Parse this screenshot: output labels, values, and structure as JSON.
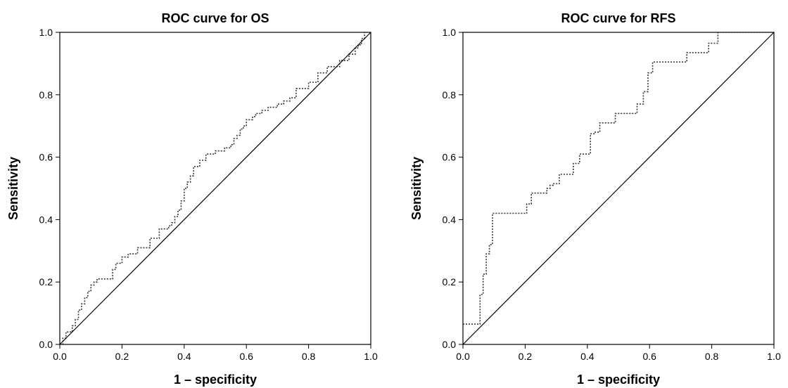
{
  "colors": {
    "curve": "#333333",
    "reference": "#000000",
    "frame": "#000000"
  },
  "chart_data": [
    {
      "type": "line",
      "title": "ROC curve for OS",
      "xlabel": "1 – specificity",
      "ylabel": "Sensitivity",
      "xlim": [
        0,
        1
      ],
      "ylim": [
        0,
        1
      ],
      "xticks": [
        "0.0",
        "0.2",
        "0.4",
        "0.6",
        "0.8",
        "1.0"
      ],
      "yticks": [
        "0.0",
        "0.2",
        "0.4",
        "0.6",
        "0.8",
        "1.0"
      ],
      "grid": false,
      "series": [
        {
          "style": "dotted-step",
          "x": [
            0.0,
            0.01,
            0.01,
            0.02,
            0.02,
            0.04,
            0.04,
            0.05,
            0.05,
            0.06,
            0.06,
            0.07,
            0.07,
            0.08,
            0.08,
            0.09,
            0.09,
            0.1,
            0.1,
            0.11,
            0.11,
            0.12,
            0.12,
            0.17,
            0.17,
            0.18,
            0.18,
            0.2,
            0.2,
            0.22,
            0.22,
            0.25,
            0.25,
            0.29,
            0.29,
            0.32,
            0.32,
            0.35,
            0.35,
            0.36,
            0.36,
            0.37,
            0.37,
            0.38,
            0.38,
            0.39,
            0.39,
            0.4,
            0.4,
            0.41,
            0.41,
            0.42,
            0.42,
            0.43,
            0.43,
            0.45,
            0.45,
            0.47,
            0.47,
            0.5,
            0.5,
            0.53,
            0.53,
            0.55,
            0.55,
            0.56,
            0.56,
            0.57,
            0.57,
            0.58,
            0.58,
            0.59,
            0.59,
            0.6,
            0.6,
            0.62,
            0.62,
            0.63,
            0.63,
            0.65,
            0.65,
            0.67,
            0.67,
            0.7,
            0.7,
            0.72,
            0.72,
            0.74,
            0.74,
            0.76,
            0.76,
            0.8,
            0.8,
            0.83,
            0.83,
            0.86,
            0.86,
            0.9,
            0.9,
            0.93,
            0.93,
            0.95,
            0.95,
            0.96,
            0.96,
            0.97,
            0.97,
            0.98,
            0.98,
            1.0
          ],
          "y": [
            0.0,
            0.0,
            0.02,
            0.02,
            0.04,
            0.04,
            0.06,
            0.06,
            0.08,
            0.08,
            0.11,
            0.11,
            0.13,
            0.13,
            0.15,
            0.15,
            0.17,
            0.17,
            0.19,
            0.19,
            0.2,
            0.2,
            0.21,
            0.21,
            0.24,
            0.24,
            0.26,
            0.26,
            0.28,
            0.28,
            0.29,
            0.29,
            0.31,
            0.31,
            0.34,
            0.34,
            0.37,
            0.37,
            0.38,
            0.38,
            0.39,
            0.39,
            0.41,
            0.41,
            0.43,
            0.43,
            0.46,
            0.46,
            0.5,
            0.5,
            0.52,
            0.52,
            0.54,
            0.54,
            0.57,
            0.57,
            0.59,
            0.59,
            0.61,
            0.61,
            0.62,
            0.62,
            0.63,
            0.63,
            0.64,
            0.64,
            0.66,
            0.66,
            0.67,
            0.67,
            0.69,
            0.69,
            0.7,
            0.7,
            0.72,
            0.72,
            0.73,
            0.73,
            0.74,
            0.74,
            0.75,
            0.75,
            0.76,
            0.76,
            0.77,
            0.77,
            0.78,
            0.78,
            0.79,
            0.79,
            0.82,
            0.82,
            0.84,
            0.84,
            0.87,
            0.87,
            0.89,
            0.89,
            0.91,
            0.91,
            0.93,
            0.93,
            0.95,
            0.95,
            0.96,
            0.96,
            0.98,
            0.98,
            1.0,
            1.0
          ]
        },
        {
          "style": "solid-diagonal",
          "x": [
            0,
            1
          ],
          "y": [
            0,
            1
          ]
        }
      ]
    },
    {
      "type": "line",
      "title": "ROC curve for RFS",
      "xlabel": "1 – specificity",
      "ylabel": "Sensitivity",
      "xlim": [
        0,
        1
      ],
      "ylim": [
        0,
        1
      ],
      "xticks": [
        "0.0",
        "0.2",
        "0.4",
        "0.6",
        "0.8",
        "1.0"
      ],
      "yticks": [
        "0.0",
        "0.2",
        "0.4",
        "0.6",
        "0.8",
        "1.0"
      ],
      "grid": false,
      "series": [
        {
          "style": "dotted-step",
          "x": [
            0.0,
            0.055,
            0.055,
            0.065,
            0.065,
            0.075,
            0.075,
            0.085,
            0.085,
            0.095,
            0.095,
            0.205,
            0.205,
            0.22,
            0.22,
            0.27,
            0.27,
            0.28,
            0.28,
            0.29,
            0.29,
            0.31,
            0.31,
            0.355,
            0.355,
            0.375,
            0.375,
            0.41,
            0.41,
            0.425,
            0.425,
            0.44,
            0.44,
            0.49,
            0.49,
            0.56,
            0.56,
            0.58,
            0.58,
            0.595,
            0.595,
            0.61,
            0.61,
            0.72,
            0.72,
            0.79,
            0.79,
            0.82,
            0.82,
            0.96,
            0.96,
            1.0
          ],
          "y": [
            0.065,
            0.065,
            0.16,
            0.16,
            0.225,
            0.225,
            0.29,
            0.29,
            0.32,
            0.32,
            0.42,
            0.42,
            0.45,
            0.45,
            0.485,
            0.485,
            0.5,
            0.5,
            0.51,
            0.51,
            0.515,
            0.515,
            0.545,
            0.545,
            0.58,
            0.58,
            0.61,
            0.61,
            0.675,
            0.675,
            0.68,
            0.68,
            0.71,
            0.71,
            0.74,
            0.74,
            0.77,
            0.77,
            0.81,
            0.81,
            0.87,
            0.87,
            0.905,
            0.905,
            0.935,
            0.935,
            0.965,
            0.965,
            1.0,
            1.0,
            1.0,
            1.0
          ]
        },
        {
          "style": "solid-diagonal",
          "x": [
            0,
            1
          ],
          "y": [
            0,
            1
          ]
        }
      ]
    }
  ]
}
